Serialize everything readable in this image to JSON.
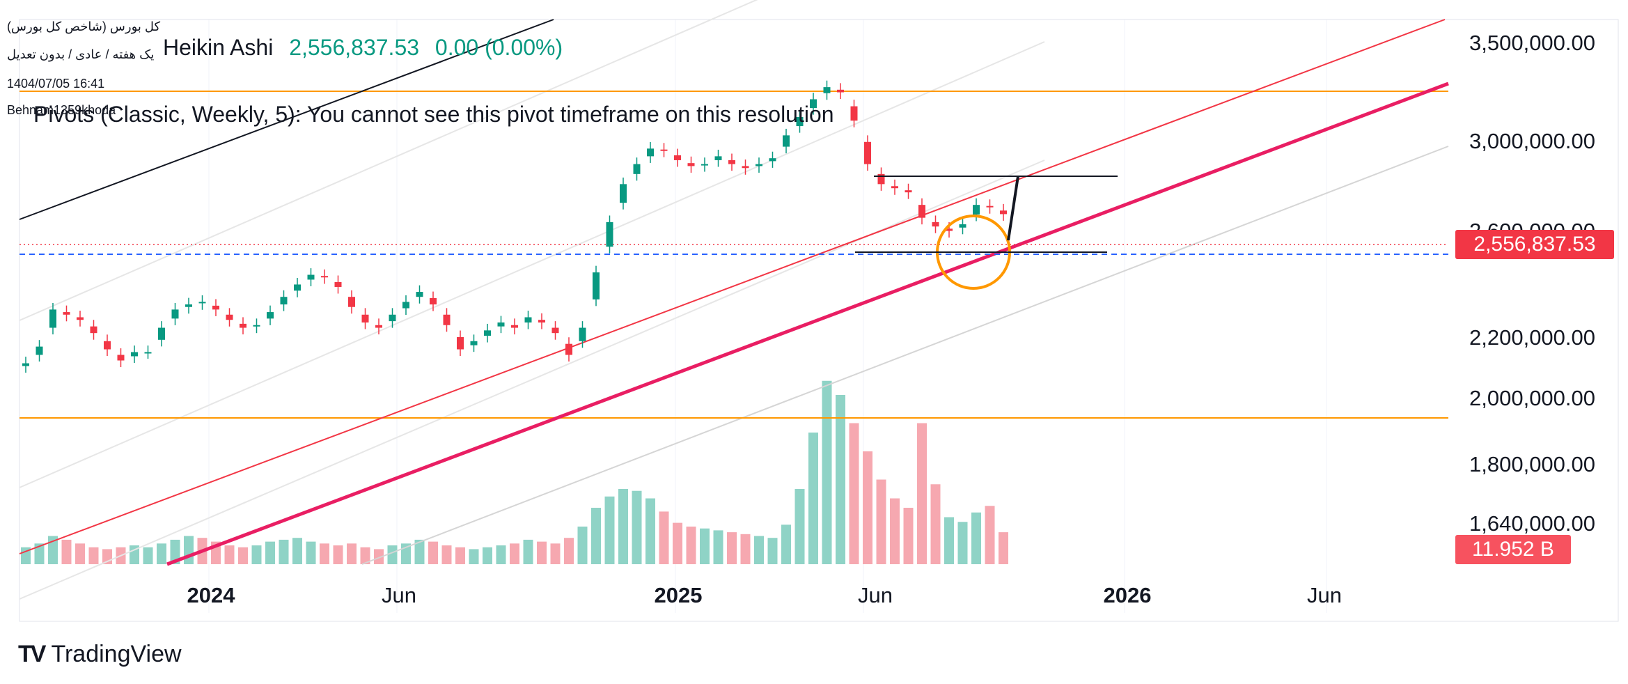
{
  "header": {
    "symbol_line": "کل بورس (شاخص کل بورس)",
    "interval_line": "یک هفته / عادی / بدون تعدیل",
    "datetime": "1404/07/05 16:41",
    "author": "Behnam1359khoda",
    "chart_style": "Heikin Ashi",
    "last_price": "2,556,837.53",
    "change": "0.00 (0.00%)"
  },
  "pivot_note": "Pivots (Classic, Weekly, 5): You cannot see this pivot timeframe on this resolution",
  "price_axis": {
    "labels": [
      "3,500,000.00",
      "3,000,000.00",
      "2,600,000.00",
      "2,200,000.00",
      "2,000,000.00",
      "1,800,000.00",
      "1,640,000.00"
    ],
    "current_price_label": "2,556,837.53",
    "volume_label": "11.952 B"
  },
  "time_axis": {
    "labels": [
      "2024",
      "Jun",
      "2025",
      "Jun",
      "2026",
      "Jun"
    ]
  },
  "brand": {
    "name": "TradingView"
  },
  "colors": {
    "up": "#089981",
    "down": "#f23645",
    "volume_up": "#8fd3c6",
    "volume_down": "#f6a8b0",
    "trend_main": "#e91e63",
    "trend_red": "#f23645",
    "horizontal_orange": "#ff9800",
    "circle": "#ff9800",
    "dashed_blue": "#2962ff"
  },
  "chart_data": {
    "type": "candlestick",
    "interval": "weekly",
    "style": "Heikin Ashi",
    "yscale": "log",
    "ylim": [
      1600000,
      3600000
    ],
    "x_ticks": [
      "2024",
      "Jun",
      "2025",
      "Jun",
      "2026",
      "Jun"
    ],
    "last_price": 2556837.53,
    "last_volume": "11.952 B",
    "close_series": [
      1950000,
      2010000,
      2150000,
      2130000,
      2110000,
      2060000,
      2000000,
      1960000,
      1990000,
      1990000,
      2080000,
      2150000,
      2170000,
      2180000,
      2150000,
      2110000,
      2080000,
      2090000,
      2140000,
      2200000,
      2250000,
      2290000,
      2280000,
      2240000,
      2160000,
      2100000,
      2080000,
      2130000,
      2180000,
      2220000,
      2170000,
      2090000,
      2000000,
      2030000,
      2070000,
      2100000,
      2080000,
      2120000,
      2100000,
      2060000,
      1980000,
      2080000,
      2300000,
      2520000,
      2700000,
      2800000,
      2880000,
      2870000,
      2820000,
      2790000,
      2800000,
      2840000,
      2800000,
      2780000,
      2800000,
      2830000,
      2950000,
      3050000,
      3150000,
      3220000,
      3190000,
      3030000,
      2800000,
      2700000,
      2680000,
      2660000,
      2540000,
      2500000,
      2480000,
      2510000,
      2600000,
      2590000,
      2556837.53
    ],
    "annotations": {
      "support_lines": [
        2556837.53,
        2540000
      ],
      "horizontal_levels": [
        3300000,
        1960000
      ],
      "resistance_target": 2820000
    }
  }
}
